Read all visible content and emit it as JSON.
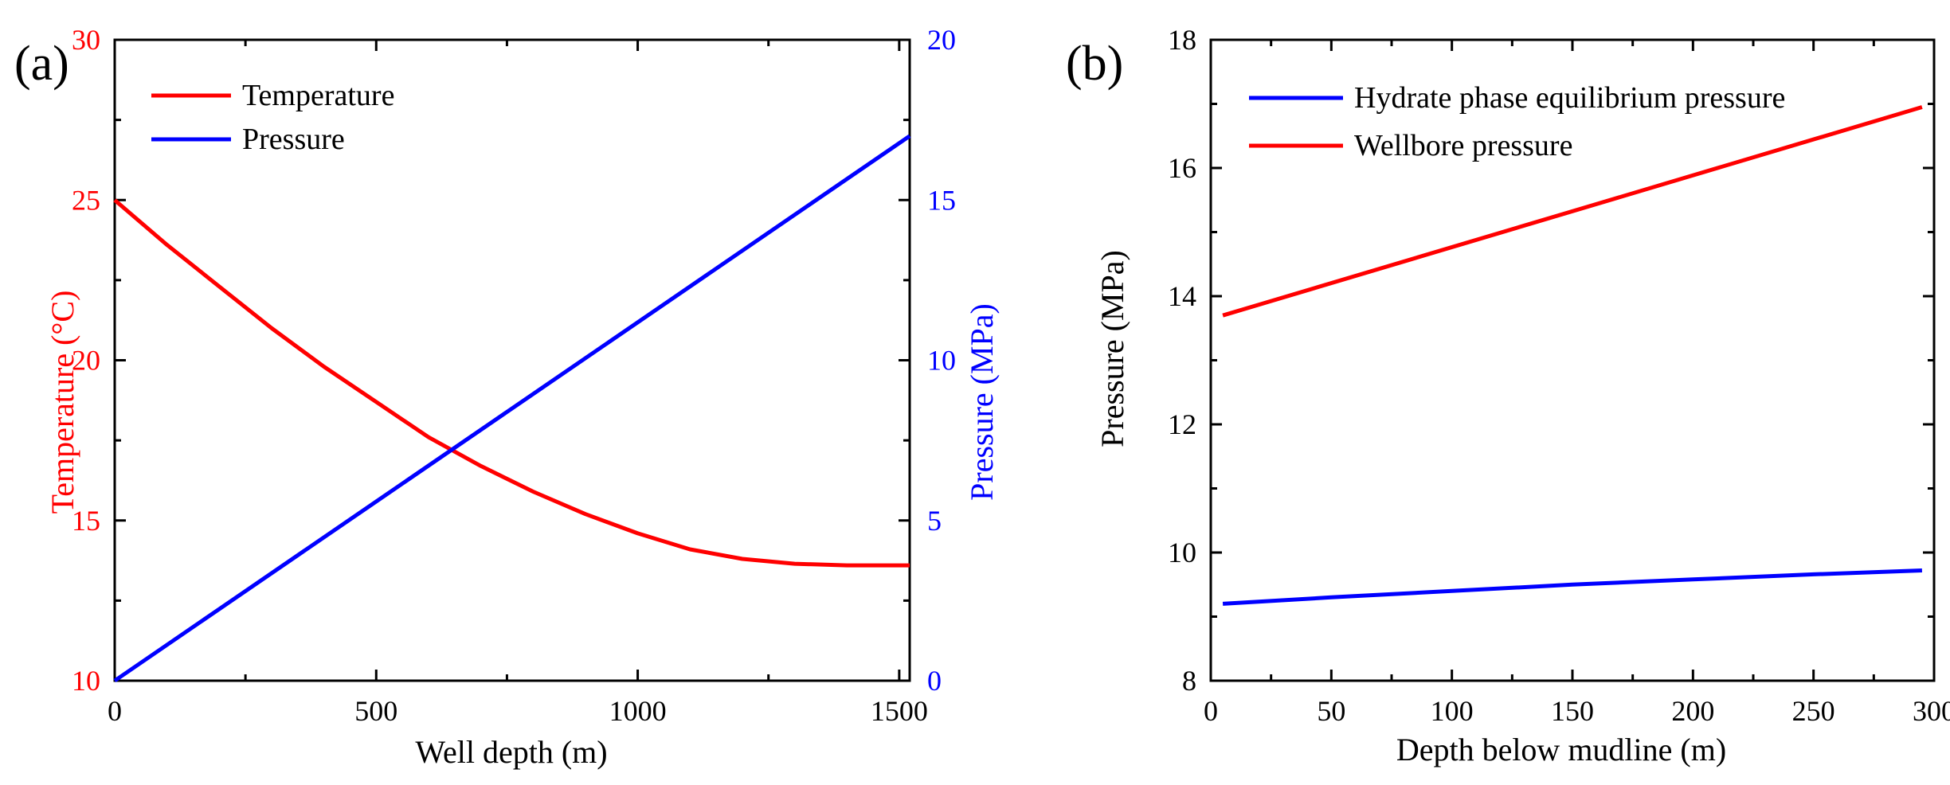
{
  "chart_data": [
    {
      "panel_label": "(a)",
      "type": "line",
      "title": "",
      "xlabel": "Well depth (m)",
      "ylabel": "Temperature (°C)",
      "y2label": "Pressure (MPa)",
      "xlim": [
        0,
        1520
      ],
      "ylim": [
        10,
        30
      ],
      "y2lim": [
        0,
        20
      ],
      "xticks": [
        0,
        500,
        1000,
        1500
      ],
      "xtick_labels": [
        "0",
        "500",
        "1000",
        "1500"
      ],
      "yticks": [
        10,
        15,
        20,
        25,
        30
      ],
      "ytick_labels": [
        "10",
        "15",
        "20",
        "25",
        "30"
      ],
      "y2ticks": [
        0,
        5,
        10,
        15,
        20
      ],
      "y2tick_labels": [
        "0",
        "5",
        "10",
        "15",
        "20"
      ],
      "legend_position": "top-left",
      "series": [
        {
          "name": "Temperature",
          "axis": "left",
          "color": "#ff0000",
          "x": [
            0,
            100,
            200,
            300,
            400,
            500,
            600,
            700,
            800,
            900,
            1000,
            1100,
            1200,
            1300,
            1400,
            1520
          ],
          "y": [
            25.0,
            23.6,
            22.3,
            21.0,
            19.8,
            18.7,
            17.6,
            16.7,
            15.9,
            15.2,
            14.6,
            14.1,
            13.8,
            13.65,
            13.6,
            13.6
          ]
        },
        {
          "name": "Pressure",
          "axis": "right",
          "color": "#0000ff",
          "x": [
            0,
            1520
          ],
          "y": [
            0.0,
            17.0
          ]
        }
      ]
    },
    {
      "panel_label": "(b)",
      "type": "line",
      "title": "",
      "xlabel": "Depth below mudline (m)",
      "ylabel": "Pressure (MPa)",
      "xlim": [
        0,
        300
      ],
      "ylim": [
        8,
        18
      ],
      "xticks": [
        0,
        50,
        100,
        150,
        200,
        250,
        300
      ],
      "xtick_labels": [
        "0",
        "50",
        "100",
        "150",
        "200",
        "250",
        "300"
      ],
      "yticks": [
        8,
        10,
        12,
        14,
        16,
        18
      ],
      "ytick_labels": [
        "8",
        "10",
        "12",
        "14",
        "16",
        "18"
      ],
      "legend_position": "top-left",
      "series": [
        {
          "name": "Hydrate phase equilibrium pressure",
          "color": "#0000ff",
          "x": [
            5,
            50,
            100,
            150,
            200,
            250,
            295
          ],
          "y": [
            9.2,
            9.3,
            9.4,
            9.5,
            9.58,
            9.66,
            9.72
          ]
        },
        {
          "name": "Wellbore pressure",
          "color": "#ff0000",
          "x": [
            5,
            295
          ],
          "y": [
            13.7,
            16.95
          ]
        }
      ]
    }
  ]
}
